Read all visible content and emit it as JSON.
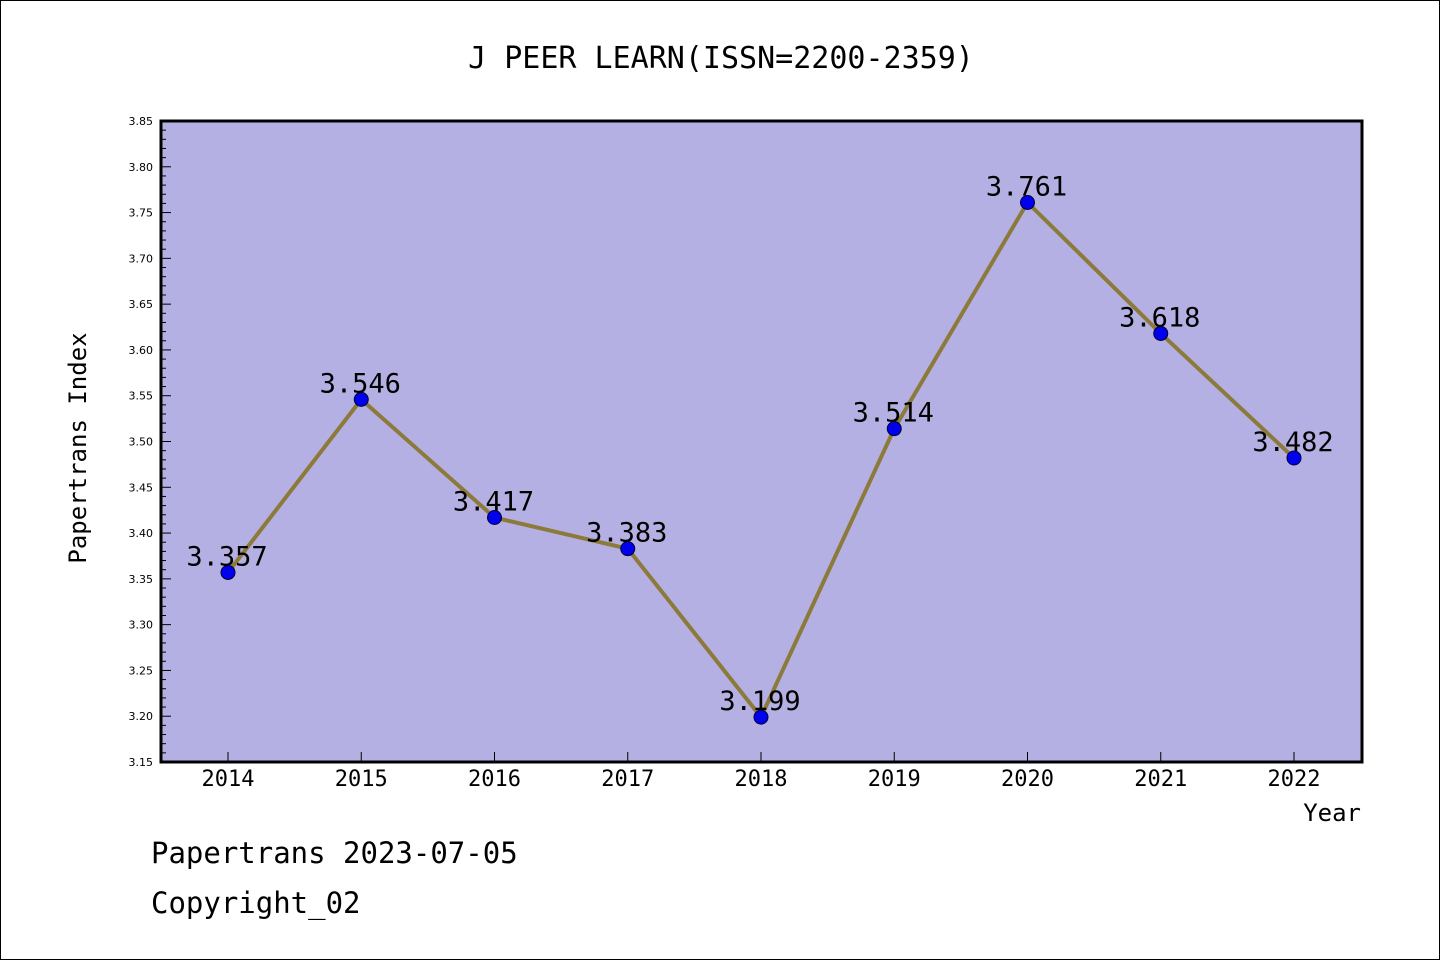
{
  "footer": {
    "line1": "Papertrans 2023-07-05",
    "line2": "Copyright_02"
  },
  "colors": {
    "plot_background": "#b5b0e3",
    "line": "#8b7a3a",
    "marker": "#0000ee",
    "axis": "#000000"
  },
  "chart_data": {
    "type": "line",
    "title": "J PEER LEARN(ISSN=2200-2359)",
    "xlabel": "Year",
    "ylabel": "Papertrans Index",
    "ylim": [
      3.15,
      3.85
    ],
    "yticks": [
      "3.15",
      "3.20",
      "3.25",
      "3.30",
      "3.35",
      "3.40",
      "3.45",
      "3.50",
      "3.55",
      "3.60",
      "3.65",
      "3.70",
      "3.75",
      "3.80",
      "3.85"
    ],
    "categories": [
      "2014",
      "2015",
      "2016",
      "2017",
      "2018",
      "2019",
      "2020",
      "2021",
      "2022"
    ],
    "values": [
      3.357,
      3.546,
      3.417,
      3.383,
      3.199,
      3.514,
      3.761,
      3.618,
      3.482
    ],
    "data_labels": [
      "3.357",
      "3.546",
      "3.417",
      "3.383",
      "3.199",
      "3.514",
      "3.761",
      "3.618",
      "3.482"
    ],
    "grid": false,
    "legend": "none"
  }
}
